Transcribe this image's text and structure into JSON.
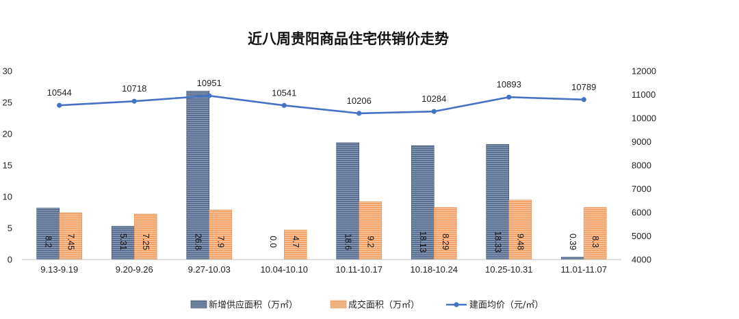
{
  "chart_data": {
    "type": "bar",
    "title": "近八周贵阳商品住宅供销价走势",
    "categories": [
      "9.13-9.19",
      "9.20-9.26",
      "9.27-10.03",
      "10.04-10.10",
      "10.11-10.17",
      "10.18-10.24",
      "10.25-10.31",
      "11.01-11.07"
    ],
    "series": [
      {
        "name": "新增供应面积（万㎡）",
        "kind": "bar",
        "axis": "left",
        "values": [
          8.2,
          5.31,
          26.8,
          0.0,
          18.6,
          18.13,
          18.33,
          0.39
        ],
        "labels": [
          "8.2",
          "5.31",
          "26.8",
          "0.0",
          "18.6",
          "18.13",
          "18.33",
          "0.39"
        ],
        "color": "#44546A"
      },
      {
        "name": "成交面积（万㎡）",
        "kind": "bar",
        "axis": "left",
        "values": [
          7.45,
          7.25,
          7.9,
          4.7,
          9.2,
          8.29,
          9.48,
          8.3
        ],
        "labels": [
          "7.45",
          "7.25",
          "7.9",
          "4.7",
          "9.2",
          "8.29",
          "9.48",
          "8.3"
        ],
        "color": "#F4A460"
      },
      {
        "name": "建面均价（元/㎡）",
        "kind": "line",
        "axis": "right",
        "values": [
          10544,
          10718,
          10951,
          10541,
          10206,
          10284,
          10893,
          10789
        ],
        "labels": [
          "10544",
          "10718",
          "10951",
          "10541",
          "10206",
          "10284",
          "10893",
          "10789"
        ],
        "color": "#4472C4"
      }
    ],
    "y_left": {
      "ylim": [
        0,
        30
      ],
      "ticks": [
        "0",
        "5",
        "10",
        "15",
        "20",
        "25",
        "30"
      ]
    },
    "y_right": {
      "ylim": [
        4000,
        12000
      ],
      "ticks": [
        "4000",
        "5000",
        "6000",
        "7000",
        "8000",
        "9000",
        "10000",
        "11000",
        "12000"
      ]
    },
    "legend_position": "bottom",
    "grid": false
  }
}
